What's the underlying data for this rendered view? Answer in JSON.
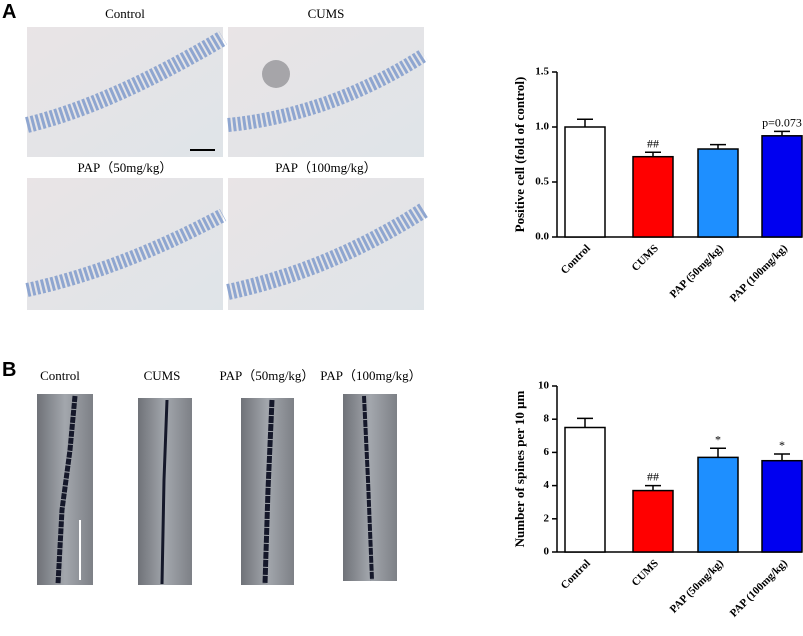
{
  "panel_labels": [
    "A",
    "B"
  ],
  "image_labels_a": [
    "Control",
    "CUMS",
    "PAP（50mg/kg）",
    "PAP（100mg/kg）"
  ],
  "image_labels_b": [
    "Control",
    "CUMS",
    "PAP（50mg/kg）",
    "PAP（100mg/kg）"
  ],
  "chart_data": [
    {
      "type": "bar",
      "ylabel": "Positive cell (fold of control)",
      "categories": [
        "Control",
        "CUMS",
        "PAP (50mg/kg)",
        "PAP (100mg/kg)"
      ],
      "values": [
        1.0,
        0.73,
        0.8,
        0.92
      ],
      "errors": [
        0.07,
        0.04,
        0.04,
        0.04
      ],
      "colors": [
        "#ffffff",
        "#ff0000",
        "#1e8fff",
        "#0000f0"
      ],
      "annotations": [
        null,
        "##",
        null,
        "p=0.073"
      ],
      "ylim": [
        0,
        1.5
      ],
      "yticks": [
        {
          "value": 0,
          "label": "0.0"
        },
        {
          "value": 0.5,
          "label": "0.5"
        },
        {
          "value": 1,
          "label": "1.0"
        },
        {
          "value": 1.5,
          "label": "1.5"
        }
      ]
    },
    {
      "type": "bar",
      "ylabel": "Number of spines per 10 μm",
      "categories": [
        "Control",
        "CUMS",
        "PAP (50mg/kg)",
        "PAP (100mg/kg)"
      ],
      "values": [
        7.5,
        3.7,
        5.7,
        5.5
      ],
      "errors": [
        0.55,
        0.3,
        0.55,
        0.4
      ],
      "colors": [
        "#ffffff",
        "#ff0000",
        "#1e8fff",
        "#0000f0"
      ],
      "annotations": [
        null,
        "##",
        "*",
        "*"
      ],
      "ylim": [
        0,
        10
      ],
      "yticks": [
        0,
        2,
        4,
        6,
        8,
        10
      ]
    }
  ]
}
